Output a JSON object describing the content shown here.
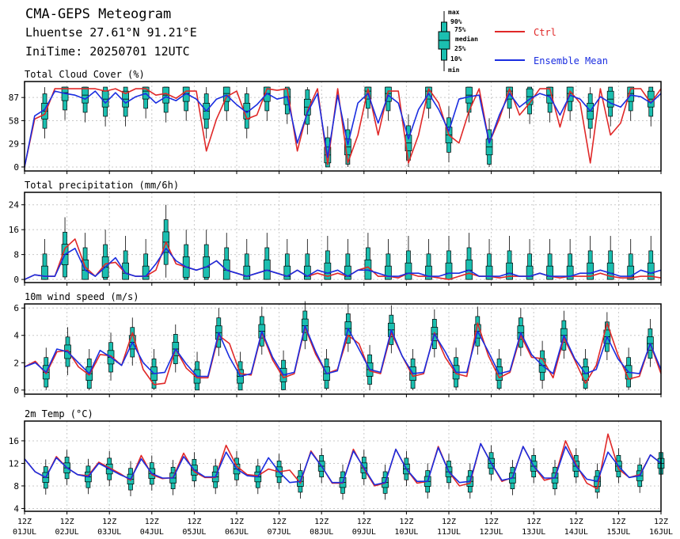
{
  "header": {
    "title": "CMA-GEPS Meteogram",
    "location": "Lhuentse 27.61°N 91.21°E",
    "init_time": "IniTime: 20250701 12UTC"
  },
  "legend": {
    "box_labels": [
      "max",
      "90%",
      "75%",
      "median",
      "25%",
      "10%",
      "min"
    ],
    "ctrl_label": "Ctrl",
    "mean_label": "Ensemble Mean",
    "ctrl_color": "#e02828",
    "mean_color": "#1a2de0",
    "box_color": "#1bbfb0"
  },
  "x_axis": {
    "labels": [
      [
        "12Z",
        "01JUL"
      ],
      [
        "12Z",
        "02JUL"
      ],
      [
        "12Z",
        "03JUL"
      ],
      [
        "12Z",
        "04JUL"
      ],
      [
        "12Z",
        "05JUL"
      ],
      [
        "12Z",
        "06JUL"
      ],
      [
        "12Z",
        "07JUL"
      ],
      [
        "12Z",
        "08JUL"
      ],
      [
        "12Z",
        "09JUL"
      ],
      [
        "12Z",
        "10JUL"
      ],
      [
        "12Z",
        "11JUL"
      ],
      [
        "12Z",
        "12JUL"
      ],
      [
        "12Z",
        "13JUL"
      ],
      [
        "12Z",
        "14JUL"
      ],
      [
        "12Z",
        "15JUL"
      ],
      [
        "12Z",
        "16JUL"
      ]
    ],
    "step": "6h"
  },
  "chart_data": [
    {
      "type": "box-line",
      "title": "Total Cloud Cover (%)",
      "yticks": [
        0,
        29,
        58,
        87
      ],
      "ylim": [
        -5,
        107
      ],
      "series": [
        {
          "name": "Ctrl",
          "values": [
            0,
            60,
            66,
            98,
            98,
            98,
            98,
            98,
            95,
            98,
            92,
            98,
            98,
            90,
            92,
            86,
            95,
            95,
            20,
            60,
            88,
            95,
            60,
            65,
            98,
            96,
            98,
            20,
            70,
            98,
            3,
            98,
            5,
            40,
            98,
            40,
            95,
            95,
            5,
            40,
            98,
            80,
            40,
            30,
            70,
            98,
            30,
            60,
            98,
            65,
            80,
            98,
            98,
            50,
            95,
            80,
            5,
            98,
            40,
            55,
            98,
            98,
            80,
            98
          ]
        },
        {
          "name": "Ensemble Mean",
          "values": [
            0,
            64,
            72,
            95,
            92,
            90,
            85,
            95,
            80,
            93,
            80,
            88,
            92,
            80,
            88,
            83,
            92,
            85,
            70,
            85,
            90,
            78,
            68,
            78,
            92,
            85,
            88,
            30,
            68,
            92,
            12,
            90,
            28,
            80,
            92,
            55,
            90,
            80,
            35,
            72,
            92,
            72,
            45,
            85,
            88,
            90,
            30,
            65,
            92,
            75,
            85,
            92,
            88,
            65,
            90,
            85,
            70,
            88,
            80,
            75,
            90,
            88,
            80,
            92
          ]
        }
      ],
      "boxes": {
        "median": [
          0,
          70,
          70,
          93,
          93,
          93,
          90,
          95,
          85,
          95,
          85,
          90,
          95,
          88,
          90,
          85,
          92,
          85,
          70,
          85,
          92,
          85,
          70,
          80,
          92,
          85,
          88,
          30,
          75,
          95,
          15,
          92,
          25,
          80,
          95,
          60,
          92,
          85,
          30,
          75,
          95,
          75,
          40,
          85,
          90,
          92,
          25,
          70,
          95,
          75,
          88,
          95,
          90,
          65,
          92,
          85,
          70,
          90,
          85,
          78,
          92,
          90,
          85,
          95
        ]
      }
    },
    {
      "type": "box-line",
      "title": "Total precipitation (mm/6h)",
      "yticks": [
        0,
        8,
        16,
        24
      ],
      "ylim": [
        -1,
        28
      ],
      "series": [
        {
          "name": "Ctrl",
          "values": [
            0,
            1.5,
            1,
            1,
            10,
            13,
            4,
            1,
            5,
            5.5,
            2,
            1,
            1,
            3,
            12,
            5,
            4,
            3,
            4,
            6,
            3,
            2,
            1,
            2,
            3,
            2,
            1,
            3,
            1,
            2,
            1,
            2,
            1,
            3,
            4,
            1,
            1,
            0.5,
            2,
            1,
            1,
            0.5,
            0,
            1,
            2,
            1,
            1,
            0.5,
            1,
            1,
            1,
            2,
            1,
            0.5,
            1,
            1,
            1,
            2,
            1,
            0.5,
            0.5,
            1,
            1,
            0.5
          ]
        },
        {
          "name": "Ensemble Mean",
          "values": [
            0,
            1.5,
            1,
            1,
            8,
            10,
            3,
            1,
            4,
            7,
            2,
            1,
            1,
            5,
            10,
            6,
            4,
            3,
            4,
            6,
            3,
            2,
            1,
            2,
            3,
            2,
            1,
            3,
            1,
            3,
            2,
            3,
            1,
            3,
            3,
            2,
            1,
            1,
            2,
            2,
            1,
            1,
            2,
            2,
            3,
            1,
            1,
            1,
            2,
            1,
            1,
            2,
            1,
            1,
            1,
            2,
            2,
            3,
            2,
            1,
            1,
            3,
            2,
            3
          ]
        }
      ],
      "boxes": {
        "median": [
          0,
          1.5,
          1,
          1,
          8,
          10,
          3,
          1,
          4,
          8,
          2,
          1,
          1,
          5,
          12,
          7,
          4,
          3,
          4,
          6,
          3,
          2,
          1,
          2,
          3,
          2,
          1,
          3,
          1,
          3,
          2,
          3,
          1,
          3,
          3,
          2,
          1,
          1,
          2,
          2,
          1,
          1,
          2,
          2,
          3,
          1,
          1,
          1,
          2,
          1,
          1,
          2,
          1,
          1,
          1,
          2,
          2,
          3,
          2,
          1,
          1,
          3,
          2,
          3
        ]
      }
    },
    {
      "type": "box-line",
      "title": "10m wind speed (m/s)",
      "yticks": [
        0,
        2,
        4,
        6
      ],
      "ylim": [
        -0.3,
        6.3
      ],
      "series": [
        {
          "name": "Ctrl",
          "values": [
            1.7,
            2.1,
            1.2,
            2.8,
            2.9,
            1.7,
            1.1,
            2.6,
            2.5,
            1.8,
            4.2,
            1.5,
            0.4,
            0.5,
            3.0,
            1.6,
            0.9,
            0.9,
            4.0,
            3.4,
            1.2,
            1.1,
            4.2,
            2.2,
            0.9,
            1.2,
            4.6,
            2.6,
            1.2,
            1.5,
            4.0,
            3.4,
            1.4,
            1.2,
            4.2,
            2.5,
            1.0,
            1.2,
            4.2,
            2.4,
            1.2,
            1.0,
            4.9,
            2.5,
            0.9,
            1.3,
            4.0,
            2.4,
            2.3,
            0.9,
            3.8,
            2.2,
            0.5,
            1.8,
            4.9,
            2.6,
            0.8,
            1.0,
            3.4,
            1.2
          ]
        },
        {
          "name": "Ensemble Mean",
          "values": [
            1.7,
            2.0,
            1.3,
            3.0,
            2.8,
            2.0,
            1.2,
            2.9,
            2.4,
            1.8,
            3.5,
            2.0,
            1.2,
            1.3,
            3.0,
            1.9,
            1.0,
            1.0,
            4.2,
            2.4,
            1.0,
            1.2,
            4.3,
            2.4,
            1.1,
            1.3,
            4.7,
            2.8,
            1.2,
            1.4,
            4.5,
            3.0,
            1.5,
            1.3,
            4.4,
            2.5,
            1.2,
            1.3,
            4.1,
            2.8,
            1.3,
            1.3,
            4.3,
            2.8,
            1.2,
            1.4,
            4.2,
            2.6,
            1.8,
            1.2,
            4.0,
            2.3,
            1.2,
            1.5,
            3.9,
            2.3,
            1.3,
            1.2,
            3.4,
            1.5
          ]
        }
      ],
      "boxes": {
        "median": [
          1.7,
          2.0,
          1.3,
          3.0,
          2.8,
          2.0,
          1.2,
          2.9,
          2.4,
          1.8,
          3.5,
          2.0,
          1.2,
          1.3,
          3.0,
          1.9,
          1.0,
          1.0,
          4.2,
          2.4,
          1.0,
          1.2,
          4.3,
          2.4,
          1.1,
          1.3,
          4.7,
          2.8,
          1.2,
          1.4,
          4.5,
          3.0,
          1.5,
          1.3,
          4.4,
          2.5,
          1.2,
          1.3,
          4.1,
          2.8,
          1.3,
          1.3,
          4.3,
          2.8,
          1.2,
          1.4,
          4.2,
          2.6,
          1.8,
          1.2,
          4.0,
          2.3,
          1.2,
          1.5,
          3.9,
          2.3,
          1.3,
          1.2,
          3.4,
          1.5
        ]
      }
    },
    {
      "type": "box-line",
      "title": "2m Temp (°C)",
      "yticks": [
        4,
        8,
        12,
        16
      ],
      "ylim": [
        3.5,
        19.5
      ],
      "series": [
        {
          "name": "Ctrl",
          "values": [
            12.8,
            10.5,
            9.5,
            13.2,
            11.2,
            10.0,
            9.8,
            12.2,
            11.2,
            10.2,
            9.0,
            13.4,
            10.0,
            9.3,
            9.5,
            13.8,
            10.5,
            9.5,
            9.5,
            15.2,
            11.5,
            10.0,
            9.8,
            11.0,
            10.5,
            10.8,
            8.5,
            14.2,
            11.5,
            8.5,
            8.5,
            14.5,
            11.0,
            8.0,
            8.5,
            14.5,
            11.0,
            8.5,
            8.8,
            15.0,
            10.5,
            8.0,
            8.5,
            15.5,
            12.0,
            8.8,
            9.5,
            15.0,
            11.5,
            9.0,
            9.5,
            16.0,
            11.8,
            8.5,
            7.5,
            17.2,
            11.0,
            9.5,
            10.0,
            13.5,
            12.0
          ]
        },
        {
          "name": "Ensemble Mean",
          "values": [
            12.8,
            10.5,
            9.5,
            13.0,
            11.2,
            10.0,
            9.6,
            12.0,
            11.0,
            10.0,
            9.2,
            12.8,
            10.2,
            9.4,
            9.4,
            13.2,
            10.8,
            9.6,
            9.6,
            14.0,
            11.0,
            9.8,
            9.6,
            13.0,
            10.5,
            8.6,
            8.8,
            14.0,
            11.5,
            8.6,
            8.6,
            14.2,
            11.2,
            8.2,
            8.6,
            14.5,
            11.0,
            8.8,
            8.8,
            14.8,
            10.5,
            8.6,
            8.8,
            15.5,
            12.0,
            9.0,
            9.4,
            15.0,
            11.5,
            9.4,
            9.4,
            15.0,
            11.5,
            9.2,
            8.8,
            14.0,
            11.5,
            9.5,
            9.8,
            13.5,
            12.0
          ]
        }
      ],
      "boxes": {
        "median": [
          12.8,
          10.5,
          9.5,
          13.0,
          11.2,
          10.0,
          9.6,
          12.0,
          11.0,
          10.0,
          9.2,
          12.8,
          10.2,
          9.4,
          9.4,
          13.2,
          10.8,
          9.6,
          9.6,
          14.0,
          11.0,
          9.8,
          9.6,
          13.0,
          10.5,
          8.6,
          8.8,
          14.0,
          11.5,
          8.6,
          8.6,
          14.2,
          11.2,
          8.2,
          8.6,
          14.5,
          11.0,
          8.8,
          8.8,
          14.8,
          10.5,
          8.6,
          8.8,
          15.5,
          12.0,
          9.0,
          9.4,
          15.0,
          11.5,
          9.4,
          9.4,
          15.0,
          11.5,
          9.2,
          8.8,
          14.0,
          11.5,
          9.5,
          9.8,
          13.5,
          12.0
        ]
      }
    }
  ]
}
